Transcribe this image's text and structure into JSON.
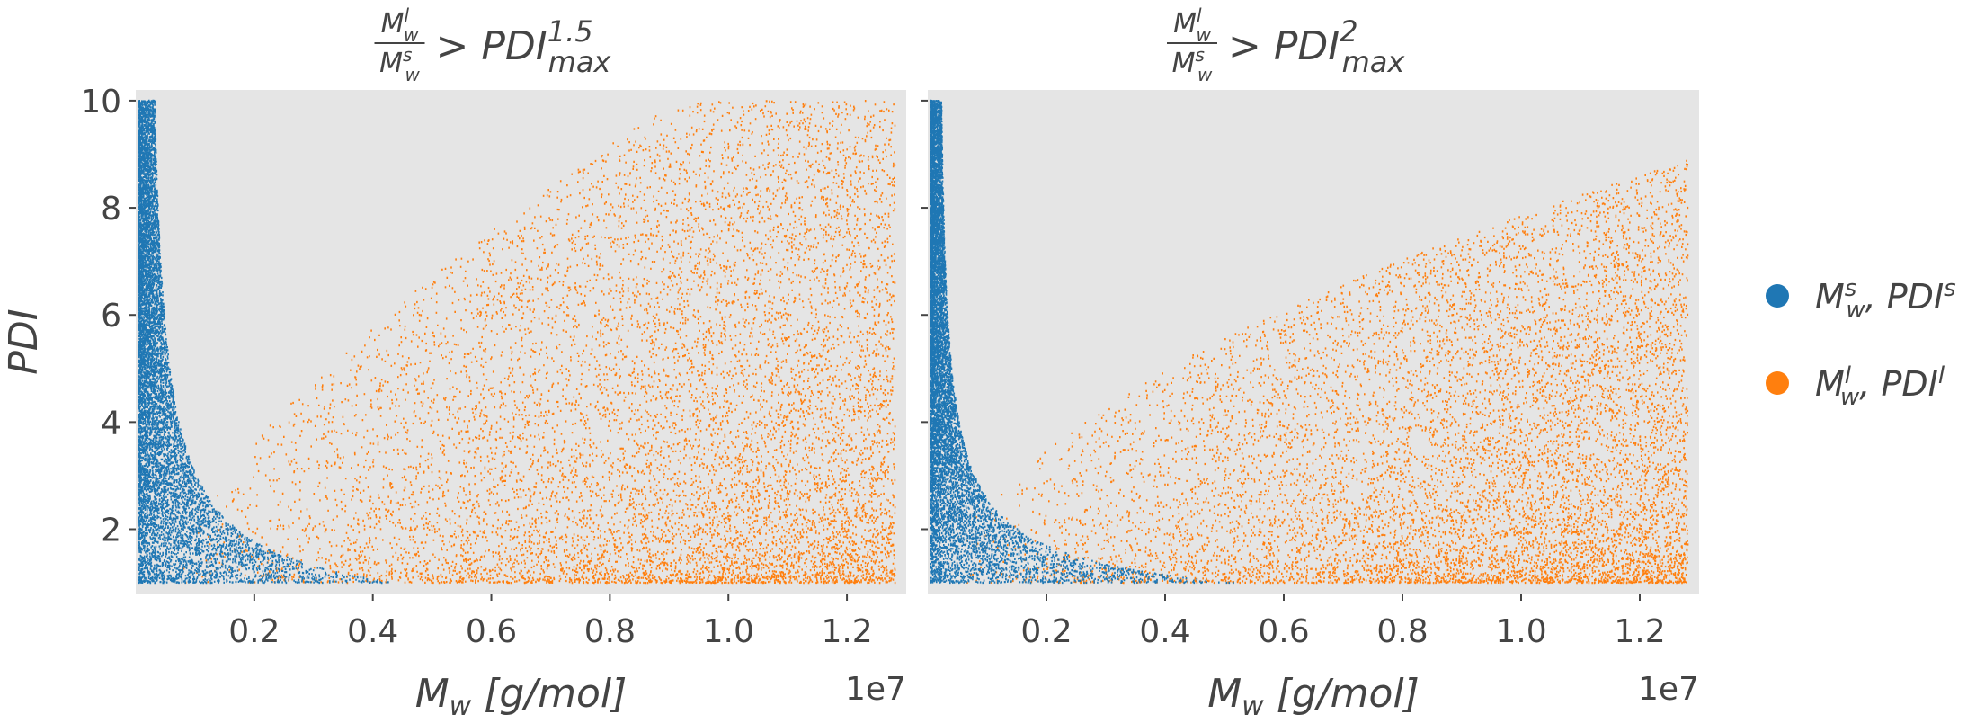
{
  "chart_data": [
    {
      "type": "scatter",
      "title": {
        "frac_num": "M",
        "frac_num_sup": "l",
        "frac_num_sub": "w",
        "frac_den": "M",
        "frac_den_sup": "s",
        "frac_den_sub": "w",
        "rel": "> PDI",
        "rel_sub": "max",
        "rel_sup": "1.5"
      },
      "xlabel": "M",
      "xlabel_sub": "w",
      "xlabel_units": " [g/mol]",
      "ylabel": "PDI",
      "x_offset_label": "1e7",
      "xlim": [
        0,
        1.3
      ],
      "ylim": [
        0.8,
        10.2
      ],
      "xticks": [
        0.2,
        0.4,
        0.6,
        0.8,
        1.0,
        1.2
      ],
      "xtick_labels": [
        "0.2",
        "0.4",
        "0.6",
        "0.8",
        "1.0",
        "1.2"
      ],
      "yticks": [
        2,
        4,
        6,
        8,
        10
      ],
      "ytick_labels": [
        "2",
        "4",
        "6",
        "8",
        "10"
      ],
      "grid": false,
      "exponent": 1.5,
      "series": [
        {
          "name": "M_w^s, PDI^s",
          "color": "#1f77b4",
          "x_range": [
            0.005,
            0.45
          ],
          "y_range": [
            1.0,
            10.0
          ],
          "count": 9000
        },
        {
          "name": "M_w^l, PDI^l",
          "color": "#ff7f0e",
          "x_range": [
            0.05,
            1.28
          ],
          "y_range": [
            1.0,
            10.0
          ],
          "count": 9000
        }
      ]
    },
    {
      "type": "scatter",
      "title": {
        "frac_num": "M",
        "frac_num_sup": "l",
        "frac_num_sub": "w",
        "frac_den": "M",
        "frac_den_sup": "s",
        "frac_den_sub": "w",
        "rel": "> PDI",
        "rel_sub": "max",
        "rel_sup": "2"
      },
      "xlabel": "M",
      "xlabel_sub": "w",
      "xlabel_units": " [g/mol]",
      "ylabel": "",
      "x_offset_label": "1e7",
      "xlim": [
        0,
        1.3
      ],
      "ylim": [
        0.8,
        10.2
      ],
      "xticks": [
        0.2,
        0.4,
        0.6,
        0.8,
        1.0,
        1.2
      ],
      "xtick_labels": [
        "0.2",
        "0.4",
        "0.6",
        "0.8",
        "1.0",
        "1.2"
      ],
      "yticks": [
        2,
        4,
        6,
        8,
        10
      ],
      "ytick_labels": [],
      "grid": false,
      "exponent": 2,
      "series": [
        {
          "name": "M_w^s, PDI^s",
          "color": "#1f77b4",
          "x_range": [
            0.003,
            0.55
          ],
          "y_range": [
            1.0,
            10.0
          ],
          "count": 9000
        },
        {
          "name": "M_w^l, PDI^l",
          "color": "#ff7f0e",
          "x_range": [
            0.05,
            1.28
          ],
          "y_range": [
            1.0,
            10.0
          ],
          "count": 9000
        }
      ]
    }
  ],
  "legend": {
    "placement": "right",
    "items": [
      {
        "main": "M",
        "sub": "w",
        "sup": "s",
        "rest": ", PDI",
        "rest_sup": "s",
        "color": "#1f77b4"
      },
      {
        "main": "M",
        "sub": "w",
        "sup": "l",
        "rest": ", PDI",
        "rest_sup": "l",
        "color": "#ff7f0e"
      }
    ]
  },
  "colors": {
    "plot_background": "#e5e5e5",
    "text": "#444444"
  }
}
